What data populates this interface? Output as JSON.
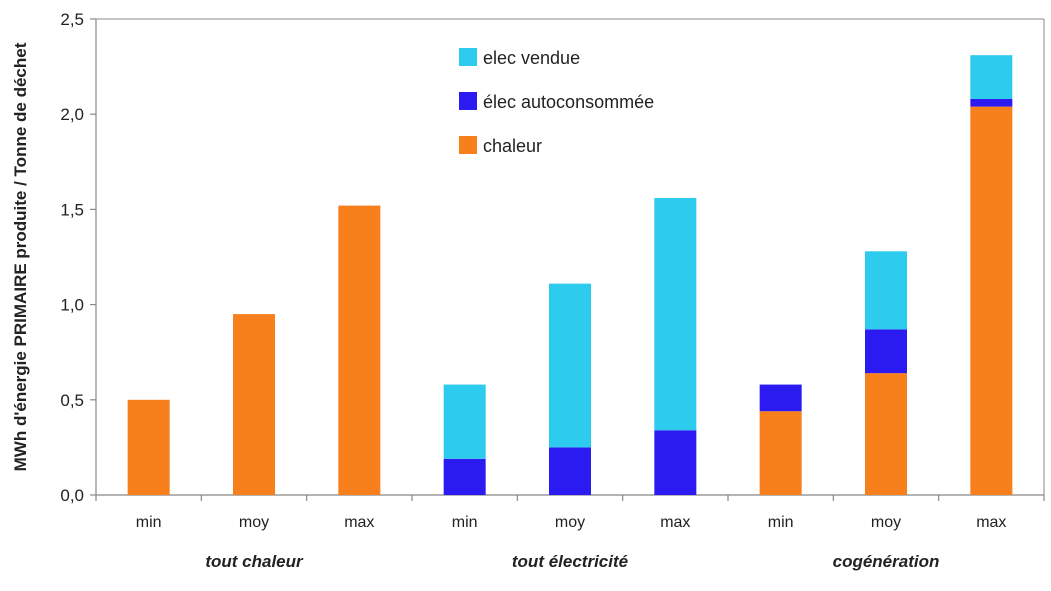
{
  "chart_data": {
    "type": "bar",
    "stacked": true,
    "ylabel": "MWh d'énergie PRIMAIRE produite / Tonne de déchet",
    "ylim": [
      0,
      2.5
    ],
    "yticks": [
      "0,0",
      "0,5",
      "1,0",
      "1,5",
      "2,0",
      "2,5"
    ],
    "categories": [
      "min",
      "moy",
      "max",
      "min",
      "moy",
      "max",
      "min",
      "moy",
      "max"
    ],
    "groups": [
      {
        "label": "tout chaleur",
        "span": [
          0,
          2
        ]
      },
      {
        "label": "tout électricité",
        "span": [
          3,
          5
        ]
      },
      {
        "label": "cogénération",
        "span": [
          6,
          8
        ]
      }
    ],
    "series": [
      {
        "name": "chaleur",
        "color": "#F77F1C",
        "values": [
          0.5,
          0.95,
          1.52,
          0,
          0,
          0,
          0.44,
          0.64,
          2.04
        ]
      },
      {
        "name": "élec autoconsommée",
        "color": "#2B1BF0",
        "values": [
          0,
          0,
          0,
          0.19,
          0.25,
          0.34,
          0.14,
          0.23,
          0.04
        ]
      },
      {
        "name": "elec vendue",
        "color": "#2DCBEE",
        "values": [
          0,
          0,
          0,
          0.39,
          0.86,
          1.22,
          0,
          0.41,
          0.23
        ]
      }
    ],
    "legend_order": [
      "elec vendue",
      "élec autoconsommée",
      "chaleur"
    ],
    "legend_position": "top-center",
    "grid": false
  }
}
